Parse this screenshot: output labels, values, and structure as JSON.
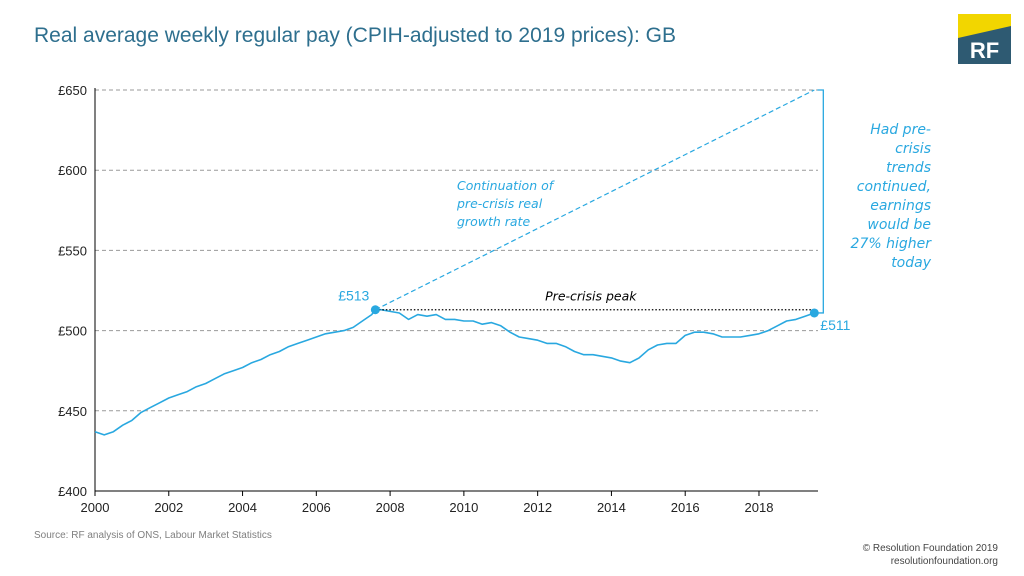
{
  "title": "Real average weekly regular pay (CPIH-adjusted to 2019 prices): GB",
  "logo_text": "RF",
  "source": "Source: RF analysis of ONS, Labour Market Statistics",
  "footer": {
    "line1": "© Resolution Foundation 2019",
    "line2": "resolutionfoundation.org"
  },
  "colors": {
    "line": "#29a8e0",
    "title": "#2e6f8e",
    "logo_bg": "#2e5a72",
    "logo_accent": "#f2d600",
    "annotation": "#29a8e0",
    "peak_line": "#000000"
  },
  "chart_data": {
    "type": "line",
    "title": "Real average weekly regular pay (CPIH-adjusted to 2019 prices): GB",
    "xlabel": "",
    "ylabel": "",
    "xlim": [
      2000,
      2019.6
    ],
    "ylim": [
      400,
      650
    ],
    "grid": "horizontal dashed",
    "x_ticks": [
      "2000",
      "2002",
      "2004",
      "2006",
      "2008",
      "2010",
      "2012",
      "2014",
      "2016",
      "2018"
    ],
    "y_ticks": [
      "£400",
      "£450",
      "£500",
      "£550",
      "£600",
      "£650"
    ],
    "series": [
      {
        "points": [
          [
            2000.0,
            437
          ],
          [
            2000.25,
            435
          ],
          [
            2000.5,
            437
          ],
          [
            2000.75,
            441
          ],
          [
            2001.0,
            444
          ],
          [
            2001.25,
            449
          ],
          [
            2001.5,
            452
          ],
          [
            2001.75,
            455
          ],
          [
            2002.0,
            458
          ],
          [
            2002.25,
            460
          ],
          [
            2002.5,
            462
          ],
          [
            2002.75,
            465
          ],
          [
            2003.0,
            467
          ],
          [
            2003.25,
            470
          ],
          [
            2003.5,
            473
          ],
          [
            2003.75,
            475
          ],
          [
            2004.0,
            477
          ],
          [
            2004.25,
            480
          ],
          [
            2004.5,
            482
          ],
          [
            2004.75,
            485
          ],
          [
            2005.0,
            487
          ],
          [
            2005.25,
            490
          ],
          [
            2005.5,
            492
          ],
          [
            2005.75,
            494
          ],
          [
            2006.0,
            496
          ],
          [
            2006.25,
            498
          ],
          [
            2006.5,
            499
          ],
          [
            2006.75,
            500
          ],
          [
            2007.0,
            502
          ],
          [
            2007.25,
            506
          ],
          [
            2007.5,
            510
          ],
          [
            2007.6,
            513
          ],
          [
            2007.75,
            513
          ],
          [
            2008.0,
            512
          ],
          [
            2008.25,
            511
          ],
          [
            2008.5,
            507
          ],
          [
            2008.75,
            510
          ],
          [
            2009.0,
            509
          ],
          [
            2009.25,
            510
          ],
          [
            2009.5,
            507
          ],
          [
            2009.75,
            507
          ],
          [
            2010.0,
            506
          ],
          [
            2010.25,
            506
          ],
          [
            2010.5,
            504
          ],
          [
            2010.75,
            505
          ],
          [
            2011.0,
            503
          ],
          [
            2011.25,
            499
          ],
          [
            2011.5,
            496
          ],
          [
            2011.75,
            495
          ],
          [
            2012.0,
            494
          ],
          [
            2012.25,
            492
          ],
          [
            2012.5,
            492
          ],
          [
            2012.75,
            490
          ],
          [
            2013.0,
            487
          ],
          [
            2013.25,
            485
          ],
          [
            2013.5,
            485
          ],
          [
            2013.75,
            484
          ],
          [
            2014.0,
            483
          ],
          [
            2014.25,
            481
          ],
          [
            2014.5,
            480
          ],
          [
            2014.75,
            483
          ],
          [
            2015.0,
            488
          ],
          [
            2015.25,
            491
          ],
          [
            2015.5,
            492
          ],
          [
            2015.75,
            492
          ],
          [
            2016.0,
            497
          ],
          [
            2016.25,
            499
          ],
          [
            2016.5,
            499
          ],
          [
            2016.75,
            498
          ],
          [
            2017.0,
            496
          ],
          [
            2017.25,
            496
          ],
          [
            2017.5,
            496
          ],
          [
            2017.75,
            497
          ],
          [
            2018.0,
            498
          ],
          [
            2018.25,
            500
          ],
          [
            2018.5,
            503
          ],
          [
            2018.75,
            506
          ],
          [
            2019.0,
            507
          ],
          [
            2019.25,
            509
          ],
          [
            2019.5,
            511
          ]
        ]
      },
      {
        "style": "dashed",
        "points": [
          [
            2007.6,
            513
          ],
          [
            2019.5,
            650
          ]
        ]
      }
    ],
    "reference_line": {
      "label": "Pre-crisis peak",
      "y": 513,
      "x_start": 2007.6,
      "x_end": 2019.5,
      "style": "dotted"
    },
    "bracket": {
      "x": 2019.5,
      "y_top": 650,
      "y_bottom": 511
    },
    "markers": [
      {
        "x": 2007.6,
        "y": 513,
        "label": "£513"
      },
      {
        "x": 2019.5,
        "y": 511,
        "label": "£511"
      }
    ],
    "annotations": {
      "continuation": [
        "Continuation of",
        "pre-crisis real",
        "growth rate"
      ],
      "peak_label": "Pre-crisis peak",
      "side_note": [
        "Had pre-",
        "crisis",
        "trends",
        "continued,",
        "earnings",
        "would be",
        "27% higher",
        "today"
      ]
    }
  }
}
